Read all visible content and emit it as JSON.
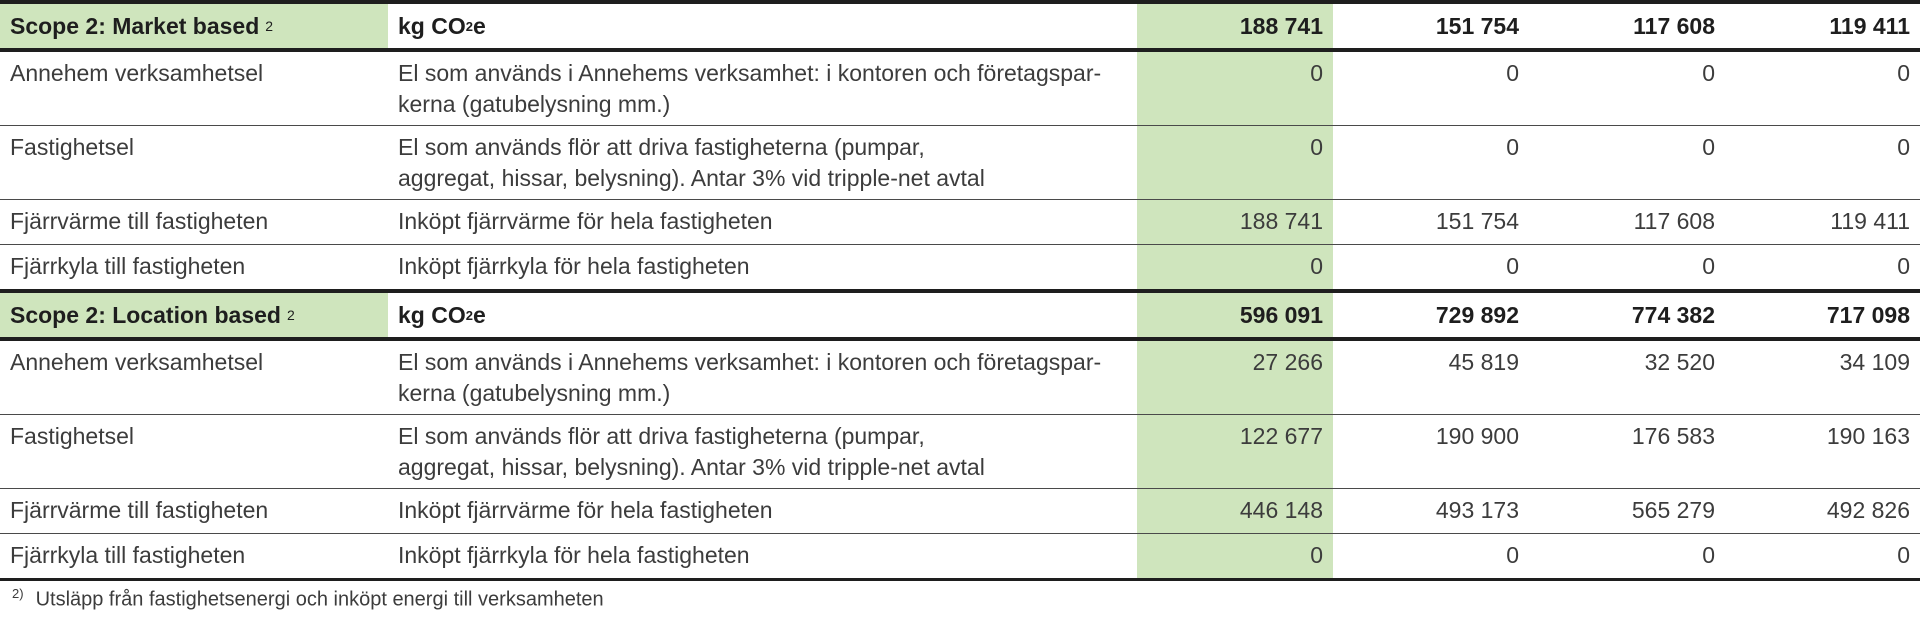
{
  "sections": [
    {
      "title": "Scope 2: Market based",
      "title_sup": "2",
      "unit_main": "kg CO",
      "unit_sub": "2",
      "unit_tail": "e",
      "totals": [
        "188 741",
        "151 754",
        "117 608",
        "119 411"
      ],
      "rows": [
        {
          "name": "Annehem verksamhetsel",
          "desc_line1": "El som används i Annehems verksamhet: i kontoren och företagspar-",
          "desc_line2": "kerna (gatubelysning mm.)",
          "values": [
            "0",
            "0",
            "0",
            "0"
          ]
        },
        {
          "name": "Fastighetsel",
          "desc_line1": "El som används flör att driva fastigheterna (pumpar,",
          "desc_line2": "aggregat, hissar, belysning). Antar 3% vid tripple-net avtal",
          "values": [
            "0",
            "0",
            "0",
            "0"
          ]
        },
        {
          "name": "Fjärrvärme till fastigheten",
          "desc_line1": "Inköpt fjärrvärme för hela fastigheten",
          "desc_line2": "",
          "values": [
            "188 741",
            "151 754",
            "117 608",
            "119 411"
          ]
        },
        {
          "name": "Fjärrkyla till fastigheten",
          "desc_line1": "Inköpt fjärrkyla för hela fastigheten",
          "desc_line2": "",
          "values": [
            "0",
            "0",
            "0",
            "0"
          ]
        }
      ]
    },
    {
      "title": "Scope 2: Location based",
      "title_sup": "2",
      "unit_main": "kg CO",
      "unit_sub": "2",
      "unit_tail": "e",
      "totals": [
        "596 091",
        "729 892",
        "774 382",
        "717 098"
      ],
      "rows": [
        {
          "name": "Annehem verksamhetsel",
          "desc_line1": "El som används i Annehems verksamhet: i kontoren och företagspar-",
          "desc_line2": "kerna (gatubelysning mm.)",
          "values": [
            "27 266",
            "45 819",
            "32 520",
            "34 109"
          ]
        },
        {
          "name": "Fastighetsel",
          "desc_line1": "El som används flör att driva fastigheterna (pumpar,",
          "desc_line2": "aggregat, hissar, belysning). Antar 3% vid tripple-net avtal",
          "values": [
            "122 677",
            "190 900",
            "176 583",
            "190 163"
          ]
        },
        {
          "name": "Fjärrvärme till fastigheten",
          "desc_line1": "Inköpt fjärrvärme för hela fastigheten",
          "desc_line2": "",
          "values": [
            "446 148",
            "493 173",
            "565 279",
            "492 826"
          ]
        },
        {
          "name": "Fjärrkyla till fastigheten",
          "desc_line1": "Inköpt fjärrkyla för hela fastigheten",
          "desc_line2": "",
          "values": [
            "0",
            "0",
            "0",
            "0"
          ]
        }
      ]
    }
  ],
  "footnote": {
    "mark": "2)",
    "text": "Utsläpp från fastighetsenergi och inköpt energi till verksamheten"
  },
  "colors": {
    "highlight": "#cfe5bd",
    "rule": "#1e1e1e"
  }
}
